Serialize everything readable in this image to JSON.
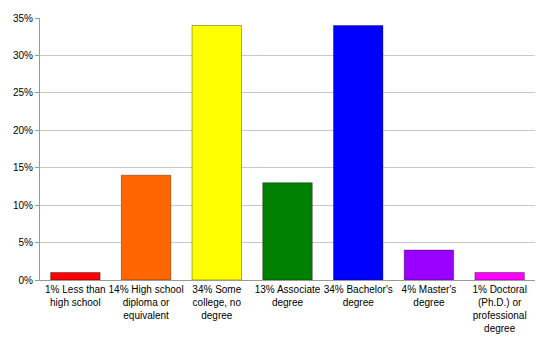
{
  "chart_data": {
    "type": "bar",
    "categories": [
      "1% Less than high school",
      "14% High school diploma or equivalent",
      "34% Some college, no degree",
      "13% Associate degree",
      "34% Bachelor's degree",
      "4% Master's degree",
      "1% Doctoral (Ph.D.) or professional degree"
    ],
    "values": [
      1,
      14,
      34,
      13,
      34,
      4,
      1
    ],
    "colors": [
      "#ff0000",
      "#ff6600",
      "#ffff00",
      "#008000",
      "#0000ff",
      "#9900ff",
      "#ff00ff"
    ],
    "ylim": [
      0,
      35
    ],
    "yticks": [
      {
        "value": 0,
        "label": "0%"
      },
      {
        "value": 5,
        "label": "5%"
      },
      {
        "value": 10,
        "label": "10%"
      },
      {
        "value": 15,
        "label": "15%"
      },
      {
        "value": 20,
        "label": "20%"
      },
      {
        "value": 25,
        "label": "25%"
      },
      {
        "value": 30,
        "label": "30%"
      },
      {
        "value": 35,
        "label": "35%"
      }
    ],
    "grid": true
  }
}
